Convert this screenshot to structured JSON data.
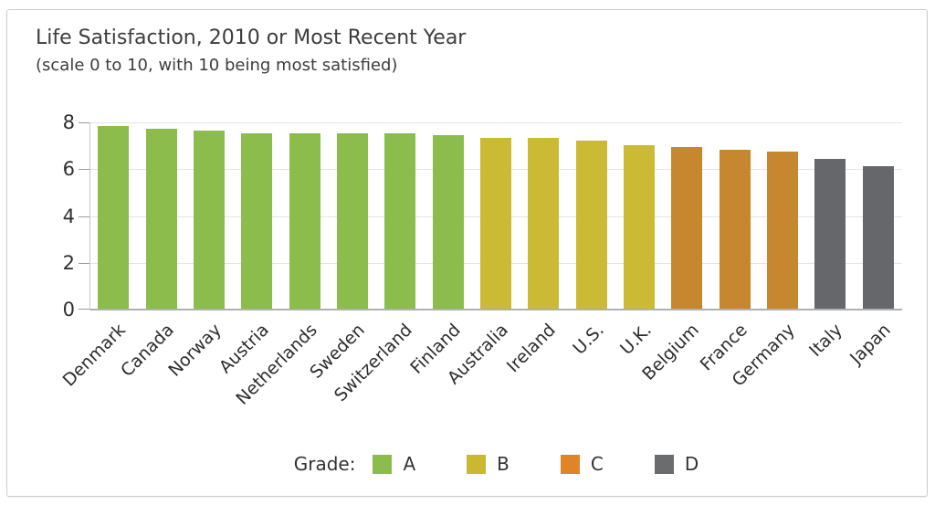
{
  "chart_data": {
    "type": "bar",
    "title": "Life Satisfaction, 2010 or Most Recent Year",
    "subtitle": "(scale 0 to 10, with 10 being most satisfied)",
    "categories": [
      "Denmark",
      "Canada",
      "Norway",
      "Austria",
      "Netherlands",
      "Sweden",
      "Switzerland",
      "Finland",
      "Australia",
      "Ireland",
      "U.S.",
      "U.K.",
      "Belgium",
      "France",
      "Germany",
      "Italy",
      "Japan"
    ],
    "values": [
      7.8,
      7.7,
      7.6,
      7.5,
      7.5,
      7.5,
      7.5,
      7.4,
      7.3,
      7.3,
      7.2,
      7.0,
      6.9,
      6.8,
      6.7,
      6.4,
      6.1
    ],
    "grades": [
      "A",
      "A",
      "A",
      "A",
      "A",
      "A",
      "A",
      "A",
      "B",
      "B",
      "B",
      "B",
      "C",
      "C",
      "C",
      "D",
      "D"
    ],
    "bar_colors": {
      "A": "#8cbd4c",
      "B": "#cbba33",
      "C": "#c6872e",
      "D": "#66676a"
    },
    "xlabel": "",
    "ylabel": "",
    "ylim": [
      0,
      8
    ],
    "yticks": [
      0,
      2,
      4,
      6,
      8
    ],
    "grid": true,
    "legend_position": "bottom",
    "legend": {
      "label": "Grade:",
      "entries": [
        {
          "grade": "A",
          "color": "#8cbd4c"
        },
        {
          "grade": "B",
          "color": "#cbb832"
        },
        {
          "grade": "C",
          "color": "#e08428"
        },
        {
          "grade": "D",
          "color": "#6b6c6e"
        }
      ]
    }
  }
}
